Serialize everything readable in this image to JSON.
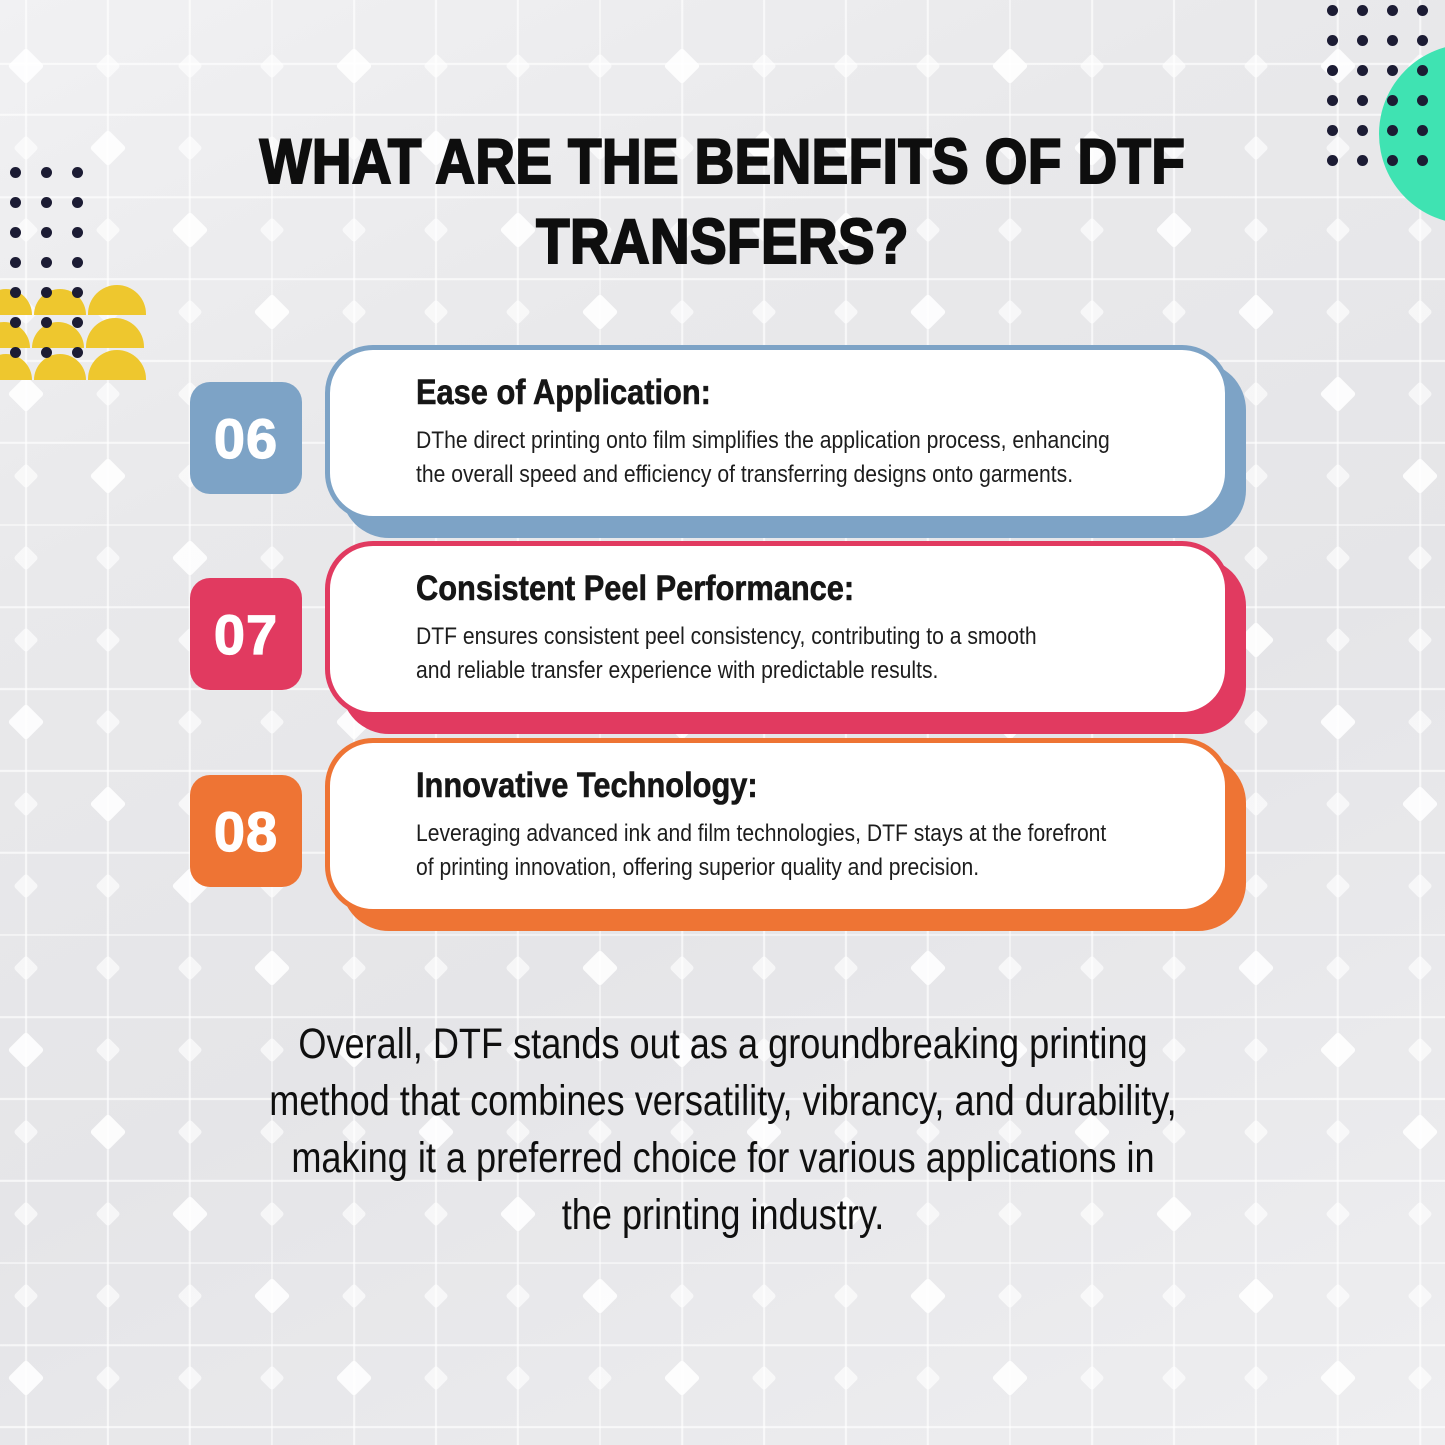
{
  "title": [
    "WHAT ARE THE BENEFITS OF DTF",
    "TRANSFERS?"
  ],
  "benefits": [
    {
      "number": "06",
      "heading": "Ease of Application:",
      "body": [
        "DThe direct printing onto film simplifies the application process, enhancing",
        "the overall speed and efficiency of transferring designs onto garments."
      ],
      "color": "#7da3c6"
    },
    {
      "number": "07",
      "heading": "Consistent Peel Performance:",
      "body": [
        "DTF ensures consistent peel consistency, contributing to a smooth",
        "and reliable transfer experience with predictable results."
      ],
      "color": "#e13a60"
    },
    {
      "number": "08",
      "heading": "Innovative Technology:",
      "body": [
        "Leveraging advanced ink and film technologies, DTF stays at the forefront",
        "of printing innovation, offering superior quality and precision."
      ],
      "color": "#ee7434"
    }
  ],
  "conclusion": [
    "Overall, DTF stands out as a groundbreaking printing",
    "method that combines versatility, vibrancy, and durability,",
    "making it a preferred choice for various applications in",
    "the printing industry."
  ],
  "decorations": {
    "teal_circle_color": "#3fe3b2",
    "dot_color": "#1c1c34",
    "dome_color": "#eec72e",
    "grid_line_color": "#ffffff"
  }
}
